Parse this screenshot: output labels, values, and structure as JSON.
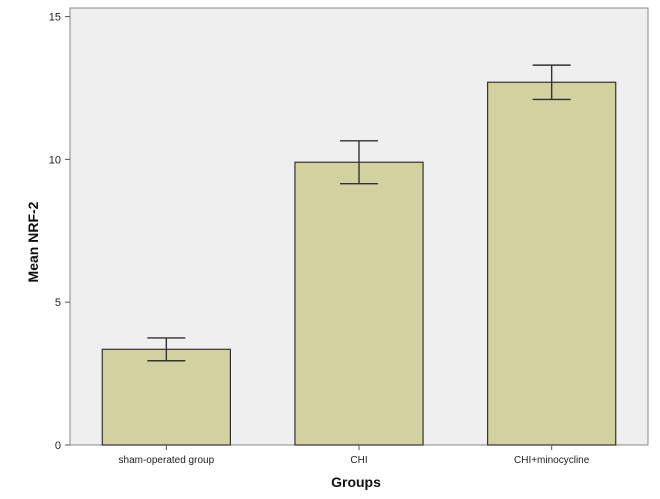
{
  "chart_data": {
    "type": "bar",
    "categories": [
      "sham-operated group",
      "CHI",
      "CHI+minocycline"
    ],
    "values": [
      3.35,
      9.9,
      12.7
    ],
    "error_low": [
      2.95,
      9.15,
      12.1
    ],
    "error_high": [
      3.75,
      10.65,
      13.3
    ],
    "title": "",
    "xlabel": "Groups",
    "ylabel": "Mean NRF-2",
    "ylim": [
      0,
      15.3
    ],
    "yticks": [
      0,
      5,
      10,
      15
    ],
    "grid": false,
    "legend": "none",
    "colors": {
      "plot_background": "#efefef",
      "bar_fill": "#d2d1a0",
      "bar_stroke": "#333333",
      "axis": "#555555"
    }
  }
}
